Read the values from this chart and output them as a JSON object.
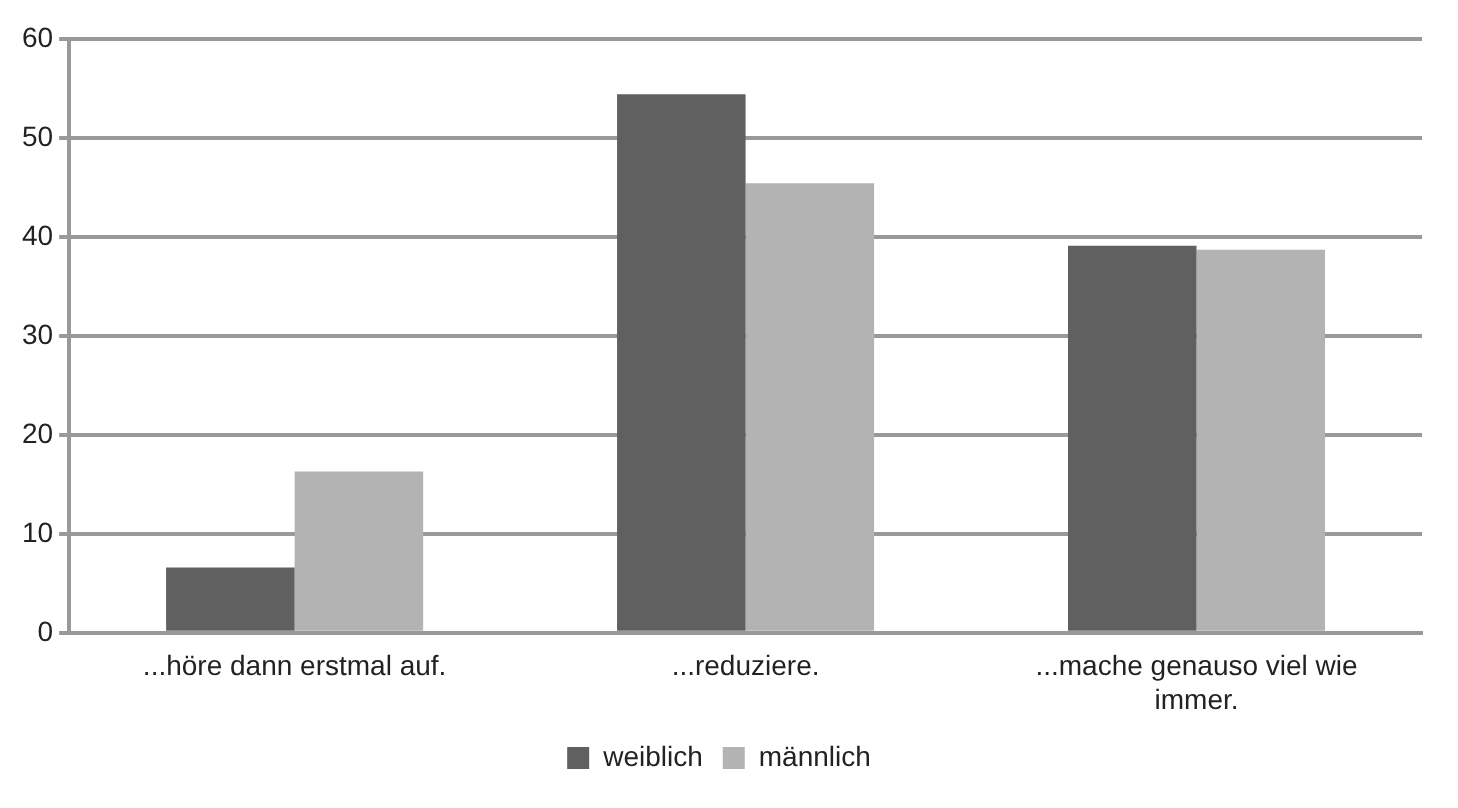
{
  "chart_data": {
    "type": "bar",
    "categories": [
      "...höre dann erstmal auf.",
      "...reduziere.",
      "...mache genauso viel wie immer."
    ],
    "series": [
      {
        "name": "weiblich",
        "color": "#606060",
        "values": [
          6.6,
          54.4,
          39.1
        ]
      },
      {
        "name": "männlich",
        "color": "#b3b3b3",
        "values": [
          16.3,
          45.4,
          38.7
        ]
      }
    ],
    "ylim": [
      0,
      60
    ],
    "yticks": [
      0,
      10,
      20,
      30,
      40,
      50,
      60
    ],
    "grid": "y",
    "legend": "bottom"
  }
}
